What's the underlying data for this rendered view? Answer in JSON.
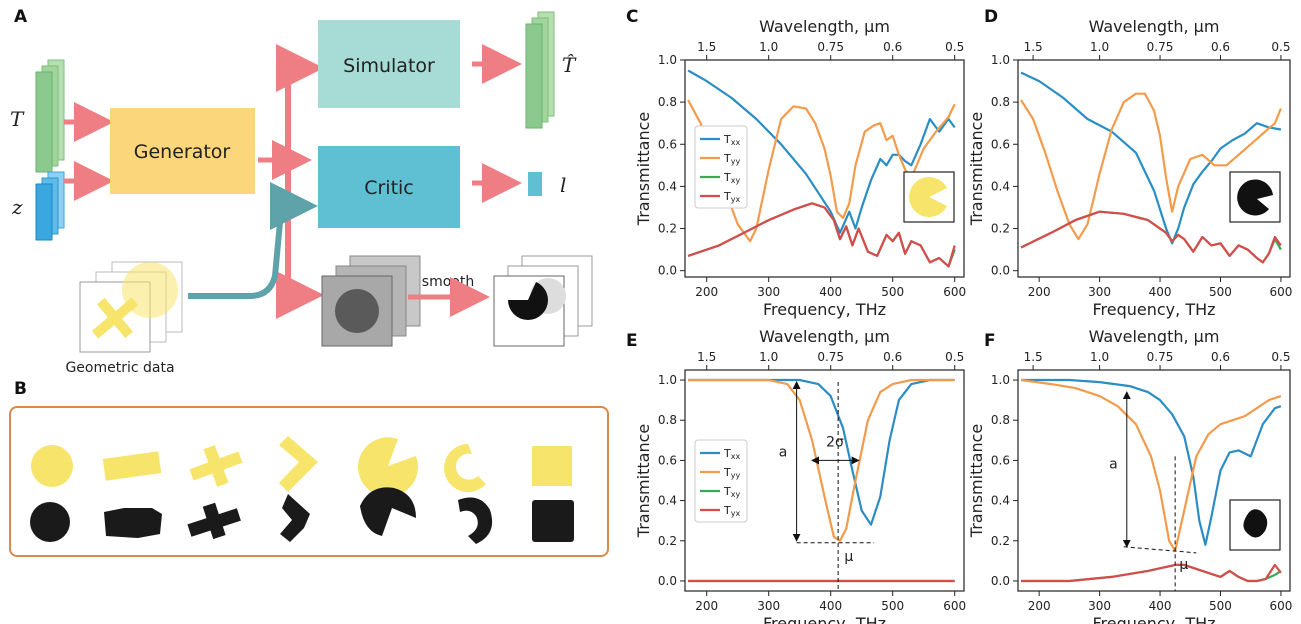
{
  "colors": {
    "Txx": "#2a8dc4",
    "Tyy": "#f39b4c",
    "Txy": "#3aa956",
    "Tyx": "#d84b4b",
    "arrow": "#ef7d84",
    "teal": "#5ea3aa",
    "yellow": "#f7e46a",
    "simulator": "#a7dcd6",
    "generator": "#fbd67a",
    "critic": "#5fbfd3",
    "green": "#8bc98e",
    "blue": "#3aa7e0"
  },
  "diagram": {
    "panel_A": "A",
    "panel_B": "B",
    "generator_label": "Generator",
    "simulator_label": "Simulator",
    "critic_label": "Critic",
    "input_T": "T",
    "input_z": "z",
    "output_That": "T̂",
    "output_l": "l",
    "smooth_label": "smooth",
    "geometric_label": "Geometric data"
  },
  "chart_data": [
    {
      "panel": "C",
      "type": "line",
      "xlabel": "Frequency, THz",
      "ylabel": "Transmittance",
      "top_xlabel": "Wavelength, μm",
      "xlim": [
        165,
        615
      ],
      "ylim": [
        -0.03,
        1.0
      ],
      "xticks": [
        200,
        300,
        400,
        500,
        600
      ],
      "yticks": [
        0.0,
        0.2,
        0.4,
        0.6,
        0.8,
        1.0
      ],
      "top_ticks": [
        {
          "label": "1.5",
          "at": 200
        },
        {
          "label": "1.0",
          "at": 300
        },
        {
          "label": "0.75",
          "at": 400
        },
        {
          "label": "0.6",
          "at": 500
        },
        {
          "label": "0.5",
          "at": 600
        }
      ],
      "legend": [
        "Txx",
        "Tyy",
        "Txy",
        "Tyx"
      ],
      "inset": "pacman-yellow",
      "series": [
        {
          "name": "Txx",
          "x": [
            170,
            200,
            240,
            280,
            320,
            360,
            400,
            415,
            430,
            440,
            450,
            465,
            480,
            490,
            500,
            510,
            520,
            530,
            545,
            560,
            575,
            590,
            600
          ],
          "y": [
            0.95,
            0.9,
            0.82,
            0.72,
            0.6,
            0.46,
            0.28,
            0.18,
            0.28,
            0.2,
            0.3,
            0.43,
            0.53,
            0.5,
            0.55,
            0.55,
            0.52,
            0.5,
            0.6,
            0.72,
            0.66,
            0.72,
            0.68
          ]
        },
        {
          "name": "Tyy",
          "x": [
            170,
            190,
            210,
            230,
            250,
            270,
            280,
            300,
            320,
            340,
            360,
            375,
            390,
            400,
            410,
            420,
            430,
            440,
            455,
            470,
            480,
            490,
            500,
            510,
            520,
            530,
            550,
            570,
            590,
            600
          ],
          "y": [
            0.81,
            0.7,
            0.55,
            0.38,
            0.22,
            0.14,
            0.2,
            0.48,
            0.72,
            0.78,
            0.77,
            0.7,
            0.58,
            0.45,
            0.28,
            0.25,
            0.32,
            0.5,
            0.66,
            0.69,
            0.7,
            0.62,
            0.64,
            0.55,
            0.48,
            0.44,
            0.58,
            0.66,
            0.73,
            0.79
          ]
        },
        {
          "name": "Txy",
          "x": [
            170,
            220,
            260,
            300,
            340,
            370,
            390,
            405,
            415,
            425,
            435,
            445,
            460,
            475,
            490,
            500,
            510,
            520,
            530,
            545,
            560,
            575,
            590,
            600
          ],
          "y": [
            0.07,
            0.12,
            0.18,
            0.24,
            0.29,
            0.32,
            0.3,
            0.24,
            0.15,
            0.21,
            0.12,
            0.2,
            0.09,
            0.07,
            0.17,
            0.14,
            0.18,
            0.08,
            0.14,
            0.12,
            0.04,
            0.06,
            0.02,
            0.1
          ]
        },
        {
          "name": "Tyx",
          "x": [
            170,
            220,
            260,
            300,
            340,
            370,
            390,
            405,
            415,
            425,
            435,
            445,
            460,
            475,
            490,
            500,
            510,
            520,
            530,
            545,
            560,
            575,
            590,
            600
          ],
          "y": [
            0.07,
            0.12,
            0.18,
            0.24,
            0.29,
            0.32,
            0.3,
            0.24,
            0.15,
            0.21,
            0.12,
            0.2,
            0.09,
            0.07,
            0.17,
            0.14,
            0.18,
            0.08,
            0.14,
            0.12,
            0.04,
            0.06,
            0.02,
            0.12
          ]
        }
      ]
    },
    {
      "panel": "D",
      "type": "line",
      "xlabel": "Frequency, THz",
      "ylabel": "Transmittance",
      "top_xlabel": "Wavelength, μm",
      "xlim": [
        165,
        615
      ],
      "ylim": [
        -0.03,
        1.0
      ],
      "xticks": [
        200,
        300,
        400,
        500,
        600
      ],
      "yticks": [
        0.0,
        0.2,
        0.4,
        0.6,
        0.8,
        1.0
      ],
      "top_ticks": [
        {
          "label": "1.5",
          "at": 190
        },
        {
          "label": "1.0",
          "at": 300
        },
        {
          "label": "0.75",
          "at": 400
        },
        {
          "label": "0.6",
          "at": 500
        },
        {
          "label": "0.5",
          "at": 600
        }
      ],
      "legend": [],
      "inset": "pacman-black",
      "series": [
        {
          "name": "Txx",
          "x": [
            170,
            200,
            240,
            280,
            320,
            360,
            390,
            410,
            420,
            430,
            440,
            455,
            470,
            485,
            500,
            520,
            540,
            560,
            580,
            600
          ],
          "y": [
            0.94,
            0.9,
            0.82,
            0.72,
            0.66,
            0.56,
            0.38,
            0.2,
            0.13,
            0.2,
            0.3,
            0.41,
            0.47,
            0.52,
            0.58,
            0.62,
            0.65,
            0.7,
            0.68,
            0.67
          ]
        },
        {
          "name": "Tyy",
          "x": [
            170,
            190,
            210,
            230,
            250,
            265,
            280,
            300,
            320,
            340,
            360,
            375,
            390,
            400,
            410,
            420,
            430,
            450,
            470,
            490,
            510,
            530,
            550,
            570,
            590,
            600
          ],
          "y": [
            0.81,
            0.72,
            0.56,
            0.38,
            0.22,
            0.15,
            0.22,
            0.46,
            0.67,
            0.8,
            0.84,
            0.84,
            0.76,
            0.64,
            0.44,
            0.28,
            0.4,
            0.53,
            0.55,
            0.5,
            0.5,
            0.55,
            0.6,
            0.65,
            0.7,
            0.77
          ]
        },
        {
          "name": "Txy",
          "x": [
            170,
            220,
            260,
            300,
            340,
            380,
            410,
            420,
            430,
            440,
            455,
            470,
            485,
            500,
            515,
            530,
            545,
            560,
            570,
            580,
            590,
            600
          ],
          "y": [
            0.11,
            0.18,
            0.24,
            0.28,
            0.27,
            0.24,
            0.18,
            0.14,
            0.17,
            0.15,
            0.09,
            0.16,
            0.12,
            0.13,
            0.07,
            0.12,
            0.1,
            0.06,
            0.04,
            0.08,
            0.15,
            0.1
          ]
        },
        {
          "name": "Tyx",
          "x": [
            170,
            220,
            260,
            300,
            340,
            380,
            410,
            420,
            430,
            440,
            455,
            470,
            485,
            500,
            515,
            530,
            545,
            560,
            570,
            580,
            590,
            600
          ],
          "y": [
            0.11,
            0.18,
            0.24,
            0.28,
            0.27,
            0.24,
            0.18,
            0.14,
            0.17,
            0.15,
            0.09,
            0.16,
            0.12,
            0.13,
            0.07,
            0.12,
            0.1,
            0.06,
            0.04,
            0.08,
            0.16,
            0.12
          ]
        }
      ]
    },
    {
      "panel": "E",
      "type": "line",
      "xlabel": "Frequency, THz",
      "ylabel": "Transmittance",
      "top_xlabel": "Wavelength, μm",
      "xlim": [
        165,
        615
      ],
      "ylim": [
        -0.05,
        1.05
      ],
      "xticks": [
        200,
        300,
        400,
        500,
        600
      ],
      "yticks": [
        0.0,
        0.2,
        0.4,
        0.6,
        0.8,
        1.0
      ],
      "top_ticks": [
        {
          "label": "1.5",
          "at": 200
        },
        {
          "label": "1.0",
          "at": 300
        },
        {
          "label": "0.75",
          "at": 400
        },
        {
          "label": "0.6",
          "at": 500
        },
        {
          "label": "0.5",
          "at": 600
        }
      ],
      "legend": [
        "Txx",
        "Tyy",
        "Txy",
        "Tyx"
      ],
      "annotations": {
        "a": "a",
        "sigma": "2σ",
        "mu": "μ"
      },
      "series": [
        {
          "name": "Txx",
          "x": [
            170,
            350,
            380,
            400,
            420,
            435,
            450,
            465,
            480,
            495,
            510,
            530,
            560,
            600
          ],
          "y": [
            1.0,
            1.0,
            0.98,
            0.92,
            0.76,
            0.55,
            0.35,
            0.28,
            0.42,
            0.7,
            0.9,
            0.98,
            1.0,
            1.0
          ]
        },
        {
          "name": "Tyy",
          "x": [
            170,
            300,
            330,
            350,
            370,
            390,
            405,
            415,
            425,
            440,
            460,
            480,
            500,
            530,
            560,
            600
          ],
          "y": [
            1.0,
            1.0,
            0.98,
            0.9,
            0.7,
            0.42,
            0.22,
            0.2,
            0.26,
            0.5,
            0.8,
            0.94,
            0.98,
            1.0,
            1.0,
            1.0
          ]
        },
        {
          "name": "Txy",
          "x": [
            170,
            600
          ],
          "y": [
            0.0,
            0.0
          ]
        },
        {
          "name": "Tyx",
          "x": [
            170,
            600
          ],
          "y": [
            0.0,
            0.0
          ]
        }
      ]
    },
    {
      "panel": "F",
      "type": "line",
      "xlabel": "Frequency, THz",
      "ylabel": "Transmittance",
      "top_xlabel": "Wavelength, μm",
      "xlim": [
        165,
        615
      ],
      "ylim": [
        -0.05,
        1.05
      ],
      "xticks": [
        200,
        300,
        400,
        500,
        600
      ],
      "yticks": [
        0.0,
        0.2,
        0.4,
        0.6,
        0.8,
        1.0
      ],
      "top_ticks": [
        {
          "label": "1.5",
          "at": 190
        },
        {
          "label": "1.0",
          "at": 300
        },
        {
          "label": "0.75",
          "at": 400
        },
        {
          "label": "0.6",
          "at": 500
        },
        {
          "label": "0.5",
          "at": 600
        }
      ],
      "legend": [],
      "inset": "blob-black",
      "annotations": {
        "a": "a",
        "mu": "μ"
      },
      "series": [
        {
          "name": "Txx",
          "x": [
            170,
            250,
            300,
            350,
            380,
            400,
            420,
            440,
            455,
            465,
            475,
            485,
            500,
            515,
            530,
            550,
            570,
            590,
            600
          ],
          "y": [
            1.0,
            1.0,
            0.99,
            0.97,
            0.94,
            0.9,
            0.83,
            0.72,
            0.52,
            0.3,
            0.18,
            0.32,
            0.55,
            0.64,
            0.65,
            0.62,
            0.78,
            0.86,
            0.87
          ]
        },
        {
          "name": "Tyy",
          "x": [
            170,
            220,
            260,
            300,
            330,
            360,
            385,
            400,
            415,
            425,
            440,
            460,
            480,
            500,
            520,
            540,
            560,
            580,
            600
          ],
          "y": [
            1.0,
            0.98,
            0.96,
            0.92,
            0.87,
            0.78,
            0.62,
            0.45,
            0.2,
            0.15,
            0.35,
            0.62,
            0.73,
            0.78,
            0.8,
            0.82,
            0.86,
            0.9,
            0.92
          ]
        },
        {
          "name": "Txy",
          "x": [
            170,
            250,
            320,
            380,
            410,
            425,
            440,
            460,
            480,
            500,
            515,
            530,
            545,
            560,
            575,
            590,
            600
          ],
          "y": [
            0.0,
            0.0,
            0.02,
            0.05,
            0.07,
            0.08,
            0.08,
            0.06,
            0.04,
            0.02,
            0.05,
            0.02,
            0.0,
            0.0,
            0.01,
            0.03,
            0.05
          ]
        },
        {
          "name": "Tyx",
          "x": [
            170,
            250,
            320,
            380,
            410,
            425,
            440,
            460,
            480,
            500,
            515,
            530,
            545,
            560,
            575,
            590,
            600
          ],
          "y": [
            0.0,
            0.0,
            0.02,
            0.05,
            0.07,
            0.08,
            0.08,
            0.06,
            0.04,
            0.02,
            0.05,
            0.02,
            0.0,
            0.0,
            0.01,
            0.08,
            0.04
          ]
        }
      ]
    }
  ]
}
